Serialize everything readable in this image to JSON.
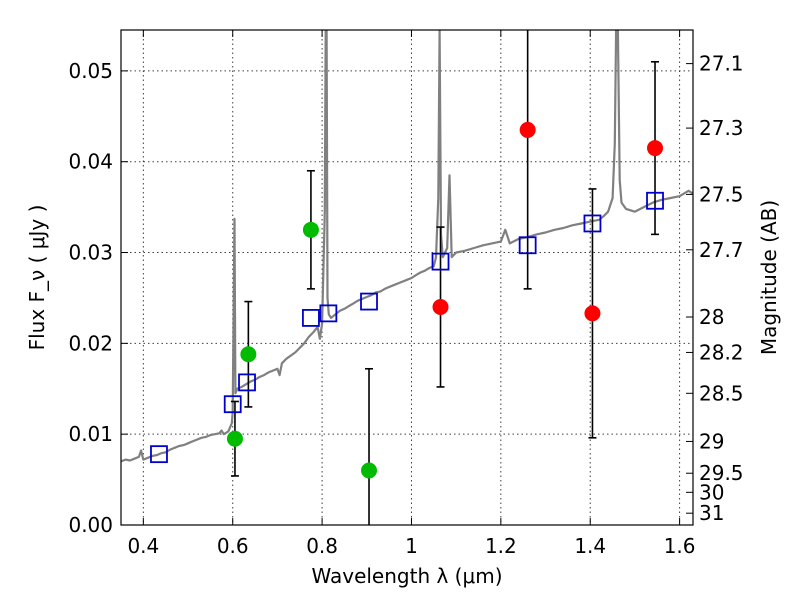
{
  "chart_data": {
    "type": "scatter",
    "title": "",
    "xlabel": "Wavelength  λ (μm)",
    "ylabel": "Flux  F_ν  ( μJy )",
    "y2label": "Magnitude (AB)",
    "xlim": [
      0.35,
      1.63
    ],
    "ylim": [
      0.0,
      0.0545
    ],
    "grid": true,
    "x_ticks": [
      0.4,
      0.6,
      0.8,
      1.0,
      1.2,
      1.4,
      1.6
    ],
    "x_tick_labels": [
      "0.4",
      "0.6",
      "0.8",
      "1",
      "1.2",
      "1.4",
      "1.6"
    ],
    "y_ticks": [
      0.0,
      0.01,
      0.02,
      0.03,
      0.04,
      0.05
    ],
    "y_tick_labels": [
      "0.00",
      "0.01",
      "0.02",
      "0.03",
      "0.04",
      "0.05"
    ],
    "y2_ticks": [
      {
        "label": "27.1",
        "flux": 0.0508
      },
      {
        "label": "27.3",
        "flux": 0.0437
      },
      {
        "label": "27.5",
        "flux": 0.0364
      },
      {
        "label": "27.7",
        "flux": 0.0303
      },
      {
        "label": "28",
        "flux": 0.0229
      },
      {
        "label": "28.2",
        "flux": 0.019
      },
      {
        "label": "28.5",
        "flux": 0.0145
      },
      {
        "label": "29",
        "flux": 0.0092
      },
      {
        "label": "29.5",
        "flux": 0.0057
      },
      {
        "label": "30",
        "flux": 0.0036
      },
      {
        "label": "31",
        "flux": 0.0013
      }
    ],
    "model_spectrum": {
      "color": "#808080",
      "points": [
        [
          0.35,
          0.007
        ],
        [
          0.36,
          0.0072
        ],
        [
          0.37,
          0.0071
        ],
        [
          0.38,
          0.0073
        ],
        [
          0.39,
          0.0075
        ],
        [
          0.395,
          0.0082
        ],
        [
          0.4,
          0.0072
        ],
        [
          0.41,
          0.0074
        ],
        [
          0.42,
          0.0076
        ],
        [
          0.43,
          0.0077
        ],
        [
          0.44,
          0.0079
        ],
        [
          0.45,
          0.008
        ],
        [
          0.46,
          0.0083
        ],
        [
          0.47,
          0.0085
        ],
        [
          0.48,
          0.0087
        ],
        [
          0.49,
          0.0088
        ],
        [
          0.5,
          0.009
        ],
        [
          0.51,
          0.0092
        ],
        [
          0.52,
          0.0094
        ],
        [
          0.53,
          0.0096
        ],
        [
          0.54,
          0.0097
        ],
        [
          0.55,
          0.0099
        ],
        [
          0.56,
          0.01
        ],
        [
          0.57,
          0.0101
        ],
        [
          0.575,
          0.0104
        ],
        [
          0.58,
          0.01
        ],
        [
          0.59,
          0.0103
        ],
        [
          0.598,
          0.0112
        ],
        [
          0.6,
          0.0125
        ],
        [
          0.604,
          0.0337
        ],
        [
          0.606,
          0.0145
        ],
        [
          0.61,
          0.015
        ],
        [
          0.62,
          0.0152
        ],
        [
          0.63,
          0.0155
        ],
        [
          0.64,
          0.0158
        ],
        [
          0.65,
          0.016
        ],
        [
          0.66,
          0.0163
        ],
        [
          0.67,
          0.0165
        ],
        [
          0.68,
          0.0168
        ],
        [
          0.69,
          0.017
        ],
        [
          0.7,
          0.0172
        ],
        [
          0.705,
          0.0165
        ],
        [
          0.71,
          0.0178
        ],
        [
          0.72,
          0.0183
        ],
        [
          0.74,
          0.019
        ],
        [
          0.76,
          0.02
        ],
        [
          0.77,
          0.0207
        ],
        [
          0.78,
          0.0212
        ],
        [
          0.79,
          0.0218
        ],
        [
          0.795,
          0.0205
        ],
        [
          0.8,
          0.0222
        ],
        [
          0.806,
          0.0345
        ],
        [
          0.808,
          0.0545
        ],
        [
          0.81,
          0.0545
        ],
        [
          0.812,
          0.025
        ],
        [
          0.815,
          0.0232
        ],
        [
          0.82,
          0.0228
        ],
        [
          0.83,
          0.0232
        ],
        [
          0.84,
          0.0236
        ],
        [
          0.85,
          0.0238
        ],
        [
          0.86,
          0.0241
        ],
        [
          0.87,
          0.0244
        ],
        [
          0.88,
          0.0247
        ],
        [
          0.89,
          0.0249
        ],
        [
          0.9,
          0.0251
        ],
        [
          0.91,
          0.0253
        ],
        [
          0.92,
          0.0256
        ],
        [
          0.93,
          0.0257
        ],
        [
          0.94,
          0.026
        ],
        [
          0.95,
          0.0262
        ],
        [
          0.96,
          0.0264
        ],
        [
          0.97,
          0.0266
        ],
        [
          0.98,
          0.0268
        ],
        [
          0.99,
          0.027
        ],
        [
          1.0,
          0.0272
        ],
        [
          1.01,
          0.0275
        ],
        [
          1.02,
          0.0278
        ],
        [
          1.03,
          0.028
        ],
        [
          1.04,
          0.0283
        ],
        [
          1.05,
          0.0285
        ],
        [
          1.055,
          0.0295
        ],
        [
          1.06,
          0.036
        ],
        [
          1.063,
          0.0545
        ],
        [
          1.066,
          0.032
        ],
        [
          1.07,
          0.0295
        ],
        [
          1.08,
          0.0305
        ],
        [
          1.085,
          0.0385
        ],
        [
          1.09,
          0.0295
        ],
        [
          1.1,
          0.03
        ],
        [
          1.12,
          0.0302
        ],
        [
          1.14,
          0.0305
        ],
        [
          1.16,
          0.0308
        ],
        [
          1.18,
          0.031
        ],
        [
          1.2,
          0.0312
        ],
        [
          1.21,
          0.0325
        ],
        [
          1.22,
          0.031
        ],
        [
          1.24,
          0.0315
        ],
        [
          1.26,
          0.0317
        ],
        [
          1.28,
          0.032
        ],
        [
          1.3,
          0.0322
        ],
        [
          1.32,
          0.0325
        ],
        [
          1.34,
          0.0327
        ],
        [
          1.36,
          0.033
        ],
        [
          1.38,
          0.0332
        ],
        [
          1.4,
          0.0334
        ],
        [
          1.42,
          0.0336
        ],
        [
          1.43,
          0.034
        ],
        [
          1.44,
          0.0345
        ],
        [
          1.45,
          0.036
        ],
        [
          1.455,
          0.042
        ],
        [
          1.458,
          0.0545
        ],
        [
          1.462,
          0.0545
        ],
        [
          1.466,
          0.038
        ],
        [
          1.47,
          0.0355
        ],
        [
          1.48,
          0.0348
        ],
        [
          1.5,
          0.0345
        ],
        [
          1.52,
          0.035
        ],
        [
          1.54,
          0.0355
        ],
        [
          1.56,
          0.0358
        ],
        [
          1.58,
          0.036
        ],
        [
          1.6,
          0.0362
        ],
        [
          1.62,
          0.0368
        ],
        [
          1.63,
          0.0365
        ]
      ]
    },
    "model_photometry": {
      "marker": "open-square",
      "color": "#0000cc",
      "points": [
        [
          0.435,
          0.0078
        ],
        [
          0.6,
          0.0133
        ],
        [
          0.632,
          0.0157
        ],
        [
          0.775,
          0.0228
        ],
        [
          0.814,
          0.0233
        ],
        [
          0.905,
          0.0246
        ],
        [
          1.065,
          0.029
        ],
        [
          1.26,
          0.0308
        ],
        [
          1.405,
          0.0332
        ],
        [
          1.545,
          0.0357
        ]
      ]
    },
    "observed_detections": {
      "marker": "filled-circle",
      "color": "#00bb00",
      "points": [
        {
          "x": 0.605,
          "y": 0.0095,
          "err": 0.0041
        },
        {
          "x": 0.635,
          "y": 0.0188,
          "err": 0.0058
        },
        {
          "x": 0.775,
          "y": 0.0325,
          "err": 0.0065
        },
        {
          "x": 0.905,
          "y": 0.006,
          "err": 0.0112
        }
      ]
    },
    "observed_other": {
      "marker": "filled-circle",
      "color": "#ff0000",
      "points": [
        {
          "x": 1.065,
          "y": 0.024,
          "err": 0.0088
        },
        {
          "x": 1.26,
          "y": 0.0435,
          "err": 0.0175
        },
        {
          "x": 1.405,
          "y": 0.0233,
          "err": 0.0137
        },
        {
          "x": 1.545,
          "y": 0.0415,
          "err": 0.0095
        }
      ]
    }
  }
}
